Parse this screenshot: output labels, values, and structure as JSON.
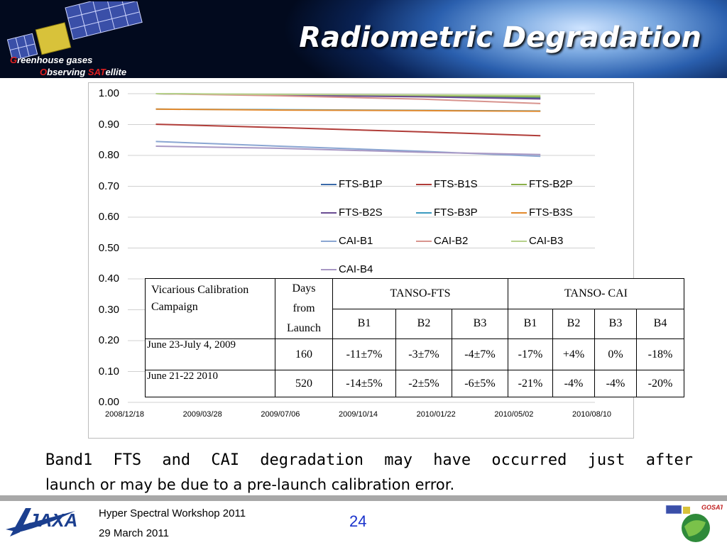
{
  "header": {
    "title": "Radiometric Degradation",
    "logo_line1_initial": "G",
    "logo_line1_rest": "reenhouse gases",
    "logo_line2_initial": "O",
    "logo_line2_mid": "bserving ",
    "logo_line2_sat": "SAT",
    "logo_line2_rest": "ellite"
  },
  "chart_data": {
    "type": "line",
    "title": "",
    "xlabel": "",
    "ylabel": "",
    "ylim": [
      0.0,
      1.0
    ],
    "y_ticks": [
      "0.00",
      "0.10",
      "0.20",
      "0.30",
      "0.40",
      "0.50",
      "0.60",
      "0.70",
      "0.80",
      "0.90",
      "1.00"
    ],
    "x_ticks": [
      "2008/12/18",
      "2009/03/28",
      "2009/07/06",
      "2009/10/14",
      "2010/01/22",
      "2010/05/02",
      "2010/08/10"
    ],
    "xlim": [
      "2008/12/18",
      "2010/08/10"
    ],
    "grid": true,
    "legend_position": "inside-right",
    "series": [
      {
        "name": "FTS-B1P",
        "color": "#3a6aa8",
        "points": [
          [
            "2009/01/23",
            1.0
          ],
          [
            "2009/07/01",
            0.996
          ],
          [
            "2010/01/01",
            0.992
          ],
          [
            "2010/06/01",
            0.987
          ]
        ]
      },
      {
        "name": "FTS-B1S",
        "color": "#b03c38",
        "points": [
          [
            "2009/01/23",
            0.901
          ],
          [
            "2009/07/01",
            0.89
          ],
          [
            "2010/01/01",
            0.876
          ],
          [
            "2010/06/01",
            0.864
          ]
        ]
      },
      {
        "name": "FTS-B2P",
        "color": "#8ab04a",
        "points": [
          [
            "2009/01/23",
            1.0
          ],
          [
            "2009/07/01",
            0.997
          ],
          [
            "2010/01/01",
            0.994
          ],
          [
            "2010/06/01",
            0.99
          ]
        ]
      },
      {
        "name": "FTS-B2S",
        "color": "#6a4c92",
        "points": [
          [
            "2009/01/23",
            1.0
          ],
          [
            "2009/07/01",
            0.995
          ],
          [
            "2010/01/01",
            0.99
          ],
          [
            "2010/06/01",
            0.983
          ]
        ]
      },
      {
        "name": "FTS-B3P",
        "color": "#3a9ac0",
        "points": [
          [
            "2009/01/23",
            0.95
          ],
          [
            "2009/07/01",
            0.948
          ],
          [
            "2010/01/01",
            0.946
          ],
          [
            "2010/06/01",
            0.944
          ]
        ]
      },
      {
        "name": "FTS-B3S",
        "color": "#e28a2e",
        "points": [
          [
            "2009/01/23",
            0.95
          ],
          [
            "2009/07/01",
            0.947
          ],
          [
            "2010/01/01",
            0.945
          ],
          [
            "2010/06/01",
            0.943
          ]
        ]
      },
      {
        "name": "CAI-B1",
        "color": "#8aa6d2",
        "points": [
          [
            "2009/01/23",
            0.845
          ],
          [
            "2009/07/01",
            0.83
          ],
          [
            "2010/01/01",
            0.813
          ],
          [
            "2010/06/01",
            0.797
          ]
        ]
      },
      {
        "name": "CAI-B2",
        "color": "#d8948e",
        "points": [
          [
            "2009/01/23",
            1.0
          ],
          [
            "2009/07/01",
            0.993
          ],
          [
            "2010/01/01",
            0.982
          ],
          [
            "2010/06/01",
            0.968
          ]
        ]
      },
      {
        "name": "CAI-B3",
        "color": "#b6d18a",
        "points": [
          [
            "2009/01/23",
            1.0
          ],
          [
            "2009/07/01",
            0.998
          ],
          [
            "2010/01/01",
            0.996
          ],
          [
            "2010/06/01",
            0.994
          ]
        ]
      },
      {
        "name": "CAI-B4",
        "color": "#a898c4",
        "points": [
          [
            "2009/01/23",
            0.83
          ],
          [
            "2009/07/01",
            0.823
          ],
          [
            "2010/01/01",
            0.81
          ],
          [
            "2010/06/01",
            0.803
          ]
        ]
      }
    ]
  },
  "table": {
    "campaign_header": "Vicarious Calibration Campaign",
    "days_header_1": "Days",
    "days_header_2": "from",
    "days_header_3": "Launch",
    "group_fts": "TANSO-FTS",
    "group_cai": "TANSO- CAI",
    "band_headers": [
      "B1",
      "B2",
      "B3",
      "B1",
      "B2",
      "B3",
      "B4"
    ],
    "rows": [
      {
        "campaign": "June 23-July 4, 2009",
        "days": "160",
        "values": [
          "-11±7%",
          "-3±7%",
          "-4±7%",
          "-17%",
          "+4%",
          "0%",
          "-18%"
        ]
      },
      {
        "campaign": "June 21-22 2010",
        "days": "520",
        "values": [
          "-14±5%",
          "-2±5%",
          "-6±5%",
          "-21%",
          "-4%",
          "-4%",
          "-20%"
        ]
      }
    ]
  },
  "caption": {
    "line1": "Band1 FTS and CAI degradation may have occurred just after",
    "line2": "launch or may be due to a pre-launch calibration error."
  },
  "footer": {
    "workshop": "Hyper Spectral Workshop 2011",
    "date": "29 March 2011",
    "page": "24",
    "jaxa_logo": "JAXA",
    "gosat_logo": "GOSAT"
  }
}
